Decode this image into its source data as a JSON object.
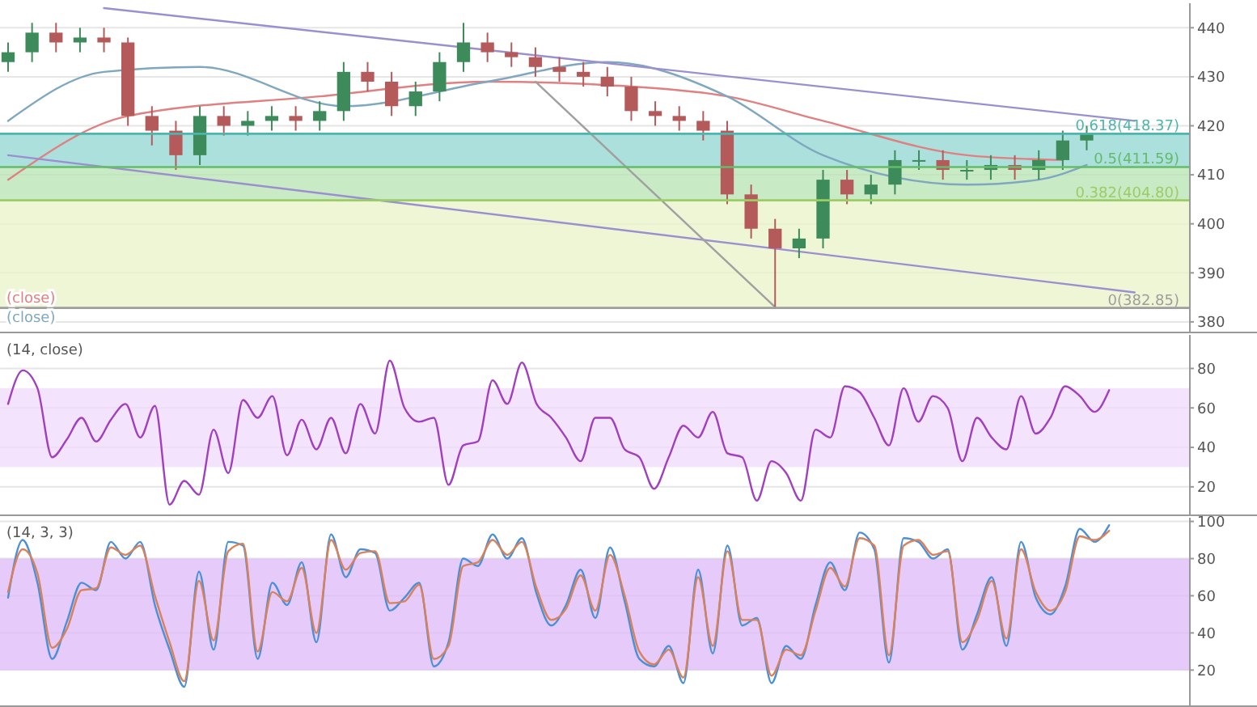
{
  "chart_data": [
    {
      "type": "candlestick",
      "categories": [
        null,
        null,
        null,
        null,
        null,
        null,
        null,
        null,
        null,
        null,
        null,
        null,
        null,
        null,
        null,
        null,
        null,
        null,
        null,
        null,
        null,
        null,
        null,
        null,
        null,
        null,
        null,
        null,
        null,
        null,
        null,
        null,
        null,
        null,
        null,
        null,
        null,
        null,
        null,
        null,
        null,
        null,
        null,
        null,
        null,
        null,
        null,
        null,
        null,
        null
      ],
      "ohlc": [
        [
          433,
          437,
          431,
          435
        ],
        [
          435,
          441,
          433,
          439
        ],
        [
          439,
          441,
          435,
          437
        ],
        [
          437,
          440,
          435,
          438
        ],
        [
          438,
          440,
          435,
          437
        ],
        [
          437,
          438,
          420,
          422
        ],
        [
          422,
          424,
          416,
          419
        ],
        [
          419,
          421,
          411,
          414
        ],
        [
          414,
          424,
          412,
          422
        ],
        [
          422,
          424,
          418,
          420
        ],
        [
          420,
          423,
          418,
          421
        ],
        [
          421,
          424,
          419,
          422
        ],
        [
          422,
          424,
          419,
          421
        ],
        [
          421,
          425,
          419,
          423
        ],
        [
          423,
          433,
          421,
          431
        ],
        [
          431,
          433,
          427,
          429
        ],
        [
          429,
          431,
          422,
          424
        ],
        [
          424,
          429,
          422,
          427
        ],
        [
          427,
          435,
          425,
          433
        ],
        [
          433,
          441,
          431,
          437
        ],
        [
          437,
          439,
          433,
          435
        ],
        [
          435,
          437,
          432,
          434
        ],
        [
          434,
          436,
          430,
          432
        ],
        [
          432,
          434,
          429,
          431
        ],
        [
          431,
          433,
          428,
          430
        ],
        [
          430,
          432,
          426,
          428
        ],
        [
          428,
          430,
          421,
          423
        ],
        [
          423,
          425,
          420,
          422
        ],
        [
          422,
          424,
          419,
          421
        ],
        [
          421,
          423,
          417,
          419
        ],
        [
          419,
          421,
          404,
          406
        ],
        [
          406,
          408,
          397,
          399
        ],
        [
          399,
          401,
          383,
          395
        ],
        [
          395,
          399,
          393,
          397
        ],
        [
          397,
          411,
          395,
          409
        ],
        [
          409,
          411,
          404,
          406
        ],
        [
          406,
          410,
          404,
          408
        ],
        [
          408,
          415,
          406,
          413
        ],
        [
          413,
          415,
          411,
          413
        ],
        [
          413,
          415,
          409,
          411
        ],
        [
          411,
          413,
          409,
          411
        ],
        [
          411,
          414,
          409,
          412
        ],
        [
          412,
          414,
          409,
          411
        ],
        [
          411,
          415,
          409,
          413
        ],
        [
          413,
          419,
          411,
          417
        ],
        [
          417,
          420,
          415,
          418.5
        ],
        null,
        null,
        null,
        null
      ],
      "series": [
        {
          "type": "line",
          "name": "(close)",
          "color": "#e08080",
          "values": [
            409,
            null,
            null,
            null,
            null,
            422,
            null,
            null,
            null,
            null,
            null,
            null,
            null,
            426,
            null,
            null,
            null,
            null,
            null,
            null,
            429,
            null,
            null,
            null,
            null,
            null,
            428,
            null,
            null,
            null,
            426,
            null,
            null,
            null,
            421,
            null,
            null,
            null,
            null,
            null,
            414,
            null,
            null,
            null,
            413,
            null,
            null,
            null,
            null,
            null
          ]
        },
        {
          "type": "line",
          "name": "(close)",
          "color": "#7fa8c0",
          "values": [
            421,
            null,
            null,
            null,
            431,
            null,
            null,
            null,
            432,
            null,
            null,
            null,
            null,
            null,
            424,
            null,
            null,
            null,
            null,
            null,
            429,
            null,
            null,
            null,
            null,
            433,
            null,
            null,
            null,
            null,
            426,
            null,
            null,
            null,
            414,
            null,
            null,
            null,
            null,
            null,
            408,
            null,
            null,
            409,
            null,
            412,
            null,
            null,
            null,
            null
          ]
        },
        {
          "type": "line",
          "color": "#9b8fd0",
          "values": [
            null,
            null,
            null,
            null,
            444,
            null,
            null,
            null,
            null,
            null,
            null,
            null,
            null,
            null,
            null,
            null,
            null,
            null,
            null,
            null,
            null,
            null,
            null,
            null,
            null,
            null,
            null,
            null,
            null,
            null,
            null,
            null,
            null,
            null,
            null,
            null,
            null,
            null,
            null,
            null,
            null,
            null,
            null,
            null,
            null,
            null,
            null,
            421,
            null,
            null
          ]
        },
        {
          "type": "line",
          "color": "#9b8fd0",
          "values": [
            414,
            null,
            null,
            null,
            null,
            null,
            null,
            null,
            null,
            null,
            null,
            null,
            null,
            null,
            null,
            null,
            null,
            null,
            null,
            null,
            null,
            null,
            null,
            null,
            null,
            null,
            null,
            null,
            null,
            null,
            null,
            null,
            null,
            null,
            null,
            null,
            null,
            null,
            null,
            null,
            null,
            null,
            null,
            null,
            null,
            null,
            null,
            386,
            null,
            null
          ]
        },
        {
          "type": "line",
          "color": "#a0a0a0",
          "values": [
            null,
            null,
            null,
            null,
            null,
            null,
            null,
            null,
            null,
            null,
            null,
            null,
            null,
            null,
            null,
            null,
            null,
            null,
            null,
            null,
            null,
            null,
            429,
            null,
            null,
            null,
            null,
            null,
            null,
            null,
            null,
            null,
            383,
            null,
            null,
            null,
            null,
            null,
            null,
            null,
            null,
            null,
            null,
            null,
            null,
            null,
            null,
            null,
            null,
            null
          ]
        }
      ],
      "ylim": [
        378,
        445
      ],
      "yticks": [
        380,
        390,
        400,
        410,
        420,
        430,
        440
      ],
      "bands": [
        {
          "axis": "y",
          "from": 411.59,
          "to": 418.37,
          "color": "#8fd6d2"
        },
        {
          "axis": "y",
          "from": 404.8,
          "to": 411.59,
          "color": "#b5e3b0"
        },
        {
          "axis": "y",
          "from": 382.85,
          "to": 404.8,
          "color": "#e8f3c8"
        }
      ],
      "ref_lines": [
        {
          "axis": "y",
          "value": 418.37,
          "label": "0.618(418.37)",
          "color": "#4db6ac"
        },
        {
          "axis": "y",
          "value": 411.59,
          "label": "0.5(411.59)",
          "color": "#66bb6a"
        },
        {
          "axis": "y",
          "value": 404.8,
          "label": "0.382(404.80)",
          "color": "#9ccc65"
        },
        {
          "axis": "y",
          "value": 382.85,
          "label": "0(382.85)",
          "color": "#9e9e9e"
        }
      ],
      "grid": "y"
    },
    {
      "type": "line",
      "title": "(14, close)",
      "categories": [
        null,
        null,
        null,
        null,
        null,
        null,
        null,
        null,
        null,
        null,
        null,
        null,
        null,
        null,
        null,
        null,
        null,
        null,
        null,
        null,
        null,
        null,
        null,
        null,
        null,
        null,
        null,
        null,
        null,
        null,
        null,
        null,
        null,
        null,
        null,
        null,
        null,
        null,
        null,
        null,
        null,
        null,
        null,
        null,
        null,
        null,
        null,
        null,
        null,
        null,
        null,
        null,
        null,
        null,
        null,
        null,
        null,
        null,
        null,
        null,
        null,
        null,
        null,
        null,
        null,
        null,
        null,
        null,
        null,
        null,
        null,
        null,
        null,
        null,
        null,
        null,
        null,
        null,
        null,
        null,
        null
      ],
      "series": [
        {
          "color": "#a040c0",
          "values": [
            62,
            79,
            70,
            35,
            44,
            55,
            43,
            54,
            62,
            45,
            61,
            11,
            23,
            16,
            49,
            27,
            64,
            55,
            66,
            36,
            54,
            39,
            55,
            37,
            62,
            47,
            84,
            60,
            53,
            55,
            21,
            41,
            43,
            74,
            62,
            83,
            62,
            55,
            45,
            33,
            55,
            55,
            39,
            35,
            19,
            35,
            51,
            45,
            58,
            37,
            35,
            13,
            33,
            27,
            13,
            49,
            45,
            71,
            68,
            55,
            41,
            70,
            53,
            66,
            60,
            33,
            55,
            45,
            39,
            66,
            47,
            55,
            71,
            66,
            58,
            69,
            null,
            null,
            null,
            null,
            null
          ]
        }
      ],
      "ylim": [
        6,
        97
      ],
      "yticks": [
        20,
        40,
        60,
        80
      ],
      "bands": [
        {
          "axis": "y",
          "from": 30,
          "to": 70,
          "color": "#efd9fb"
        }
      ],
      "grid": "y"
    },
    {
      "type": "line",
      "title": "(14, 3, 3)",
      "categories": [
        null,
        null,
        null,
        null,
        null,
        null,
        null,
        null,
        null,
        null,
        null,
        null,
        null,
        null,
        null,
        null,
        null,
        null,
        null,
        null,
        null,
        null,
        null,
        null,
        null,
        null,
        null,
        null,
        null,
        null,
        null,
        null,
        null,
        null,
        null,
        null,
        null,
        null,
        null,
        null,
        null,
        null,
        null,
        null,
        null,
        null,
        null,
        null,
        null,
        null,
        null,
        null,
        null,
        null,
        null,
        null,
        null,
        null,
        null,
        null,
        null,
        null,
        null,
        null,
        null,
        null,
        null,
        null,
        null,
        null,
        null,
        null,
        null,
        null,
        null,
        null,
        null,
        null,
        null,
        null,
        null
      ],
      "series": [
        {
          "color": "#4a90d9",
          "values": [
            59,
            90,
            67,
            26,
            46,
            67,
            63,
            89,
            80,
            89,
            55,
            31,
            11,
            73,
            31,
            89,
            87,
            26,
            67,
            55,
            78,
            35,
            93,
            70,
            85,
            83,
            52,
            59,
            67,
            22,
            35,
            80,
            76,
            93,
            80,
            91,
            61,
            44,
            55,
            74,
            48,
            86,
            57,
            26,
            22,
            33,
            13,
            74,
            29,
            87,
            44,
            48,
            13,
            33,
            26,
            55,
            78,
            63,
            94,
            85,
            24,
            91,
            89,
            80,
            85,
            31,
            50,
            70,
            33,
            89,
            59,
            50,
            65,
            96,
            89,
            98,
            null,
            null,
            null,
            null,
            null
          ]
        },
        {
          "color": "#d9825a",
          "values": [
            62,
            85,
            72,
            32,
            42,
            63,
            64,
            86,
            82,
            87,
            60,
            35,
            14,
            68,
            36,
            84,
            88,
            30,
            62,
            57,
            75,
            40,
            90,
            74,
            83,
            84,
            56,
            57,
            66,
            26,
            33,
            76,
            78,
            90,
            82,
            89,
            64,
            47,
            53,
            71,
            52,
            82,
            60,
            30,
            23,
            31,
            16,
            70,
            33,
            84,
            47,
            47,
            17,
            31,
            28,
            52,
            75,
            65,
            91,
            87,
            28,
            87,
            90,
            82,
            84,
            35,
            47,
            68,
            37,
            85,
            62,
            52,
            62,
            92,
            90,
            95,
            null,
            null,
            null,
            null,
            null
          ]
        }
      ],
      "ylim": [
        1,
        102
      ],
      "yticks": [
        20,
        40,
        60,
        80,
        100
      ],
      "bands": [
        {
          "axis": "y",
          "from": 20,
          "to": 80,
          "color": "#dcb8f8"
        }
      ],
      "grid": "y"
    }
  ]
}
